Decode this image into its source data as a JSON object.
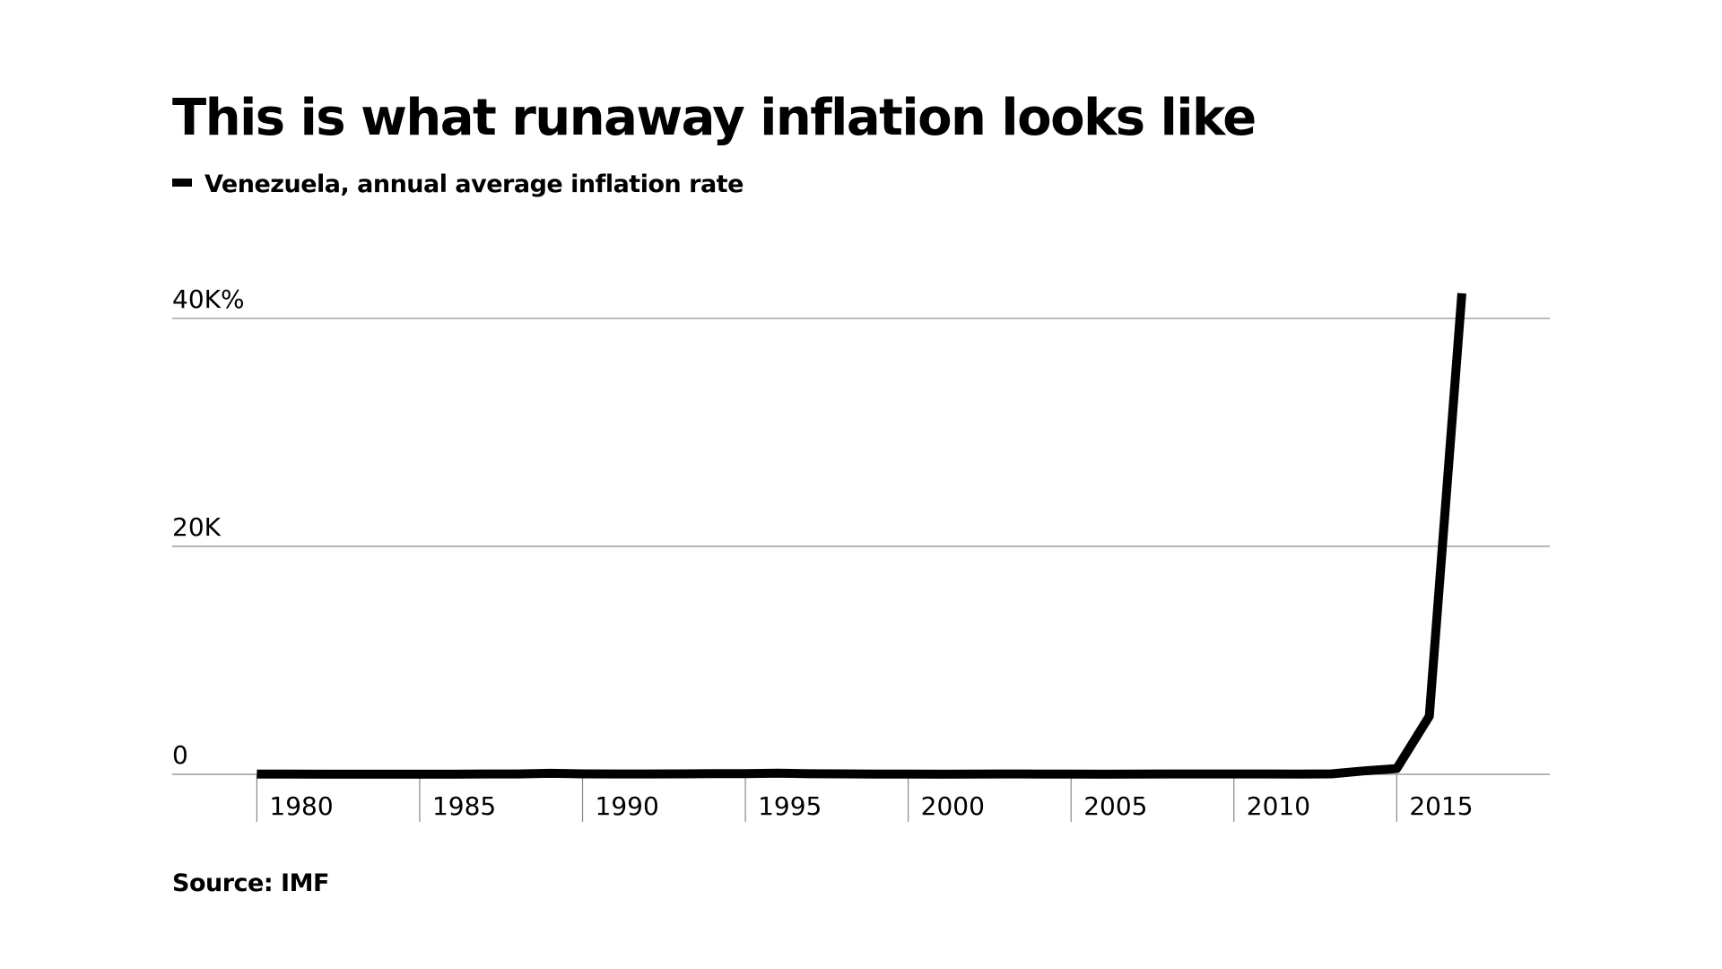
{
  "chart_data": {
    "type": "line",
    "title": "This is what runaway inflation looks like",
    "source": "Source: IMF",
    "x": [
      1980,
      1981,
      1982,
      1983,
      1984,
      1985,
      1986,
      1987,
      1988,
      1989,
      1990,
      1991,
      1992,
      1993,
      1994,
      1995,
      1996,
      1997,
      1998,
      1999,
      2000,
      2001,
      2002,
      2003,
      2004,
      2005,
      2006,
      2007,
      2008,
      2009,
      2010,
      2011,
      2012,
      2013,
      2014,
      2015,
      2016,
      2017
    ],
    "series": [
      {
        "name": "Venezuela, annual average inflation rate",
        "color": "#000000",
        "values": [
          20,
          16,
          10,
          6,
          12,
          11,
          12,
          28,
          30,
          85,
          41,
          34,
          31,
          38,
          61,
          60,
          100,
          50,
          36,
          24,
          16,
          13,
          22,
          31,
          22,
          16,
          14,
          19,
          31,
          27,
          28,
          26,
          21,
          40,
          300,
          500,
          5100,
          42200
        ]
      }
    ],
    "xlim": [
      1977.4,
      2019.7
    ],
    "xticks": [
      1980,
      1985,
      1990,
      1995,
      2000,
      2005,
      2010,
      2015
    ],
    "ylim": [
      0,
      44000
    ],
    "yticks": [
      0,
      {
        "value": 20000,
        "label": "20K"
      },
      {
        "value": 40000,
        "label": "40K%"
      }
    ],
    "grid": true
  }
}
